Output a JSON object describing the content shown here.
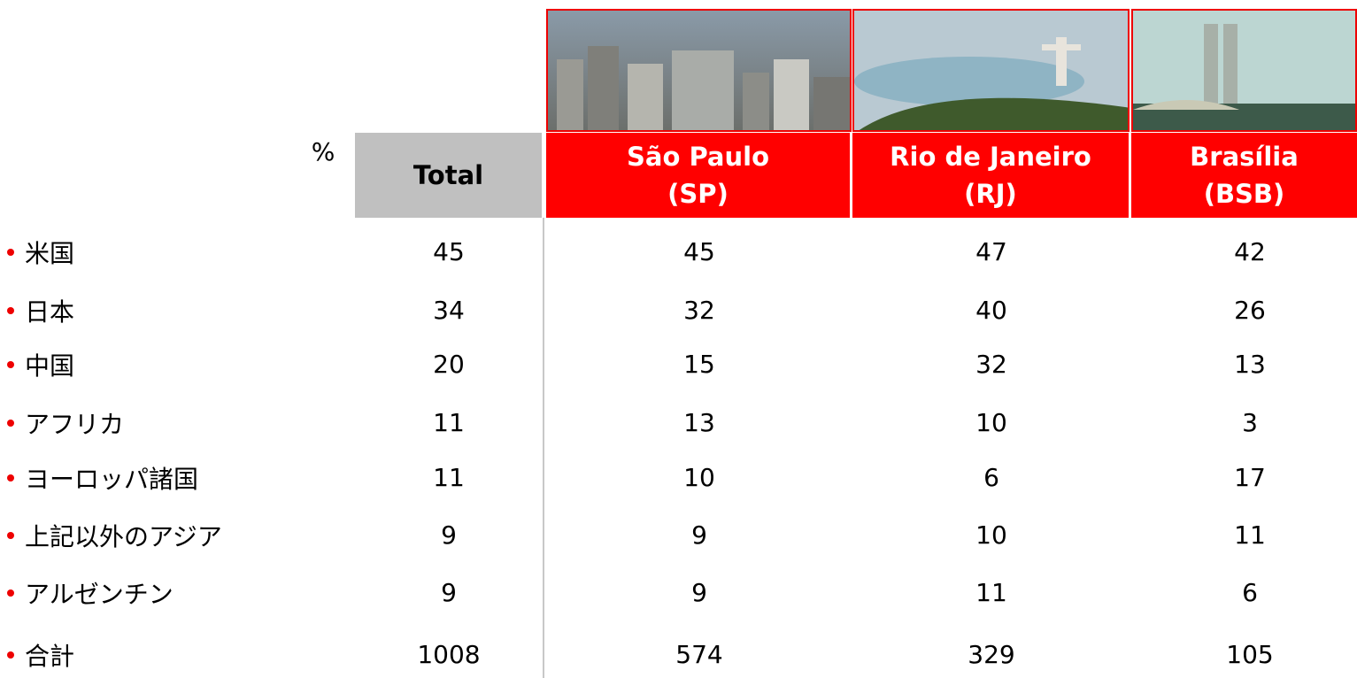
{
  "table": {
    "unit": "%",
    "columns": [
      {
        "name": "Total"
      },
      {
        "name": "São Paulo",
        "code": "(SP)"
      },
      {
        "name": "Rio de Janeiro",
        "code": "(RJ)"
      },
      {
        "name": "Brasília",
        "code": "(BSB)"
      }
    ],
    "rows": [
      {
        "label": "米国",
        "values": [
          "45",
          "45",
          "47",
          "42"
        ]
      },
      {
        "label": "日本",
        "values": [
          "34",
          "32",
          "40",
          "26"
        ]
      },
      {
        "label": "中国",
        "values": [
          "20",
          "15",
          "32",
          "13"
        ]
      },
      {
        "label": "アフリカ",
        "values": [
          "11",
          "13",
          "10",
          "3"
        ]
      },
      {
        "label": "ヨーロッパ諸国",
        "values": [
          "11",
          "10",
          "6",
          "17"
        ]
      },
      {
        "label": "上記以外のアジア",
        "values": [
          "9",
          "9",
          "10",
          "11"
        ]
      },
      {
        "label": "アルゼンチン",
        "values": [
          "9",
          "9",
          "11",
          "6"
        ]
      },
      {
        "label": "合計",
        "values": [
          "1008",
          "574",
          "329",
          "105"
        ]
      }
    ]
  }
}
